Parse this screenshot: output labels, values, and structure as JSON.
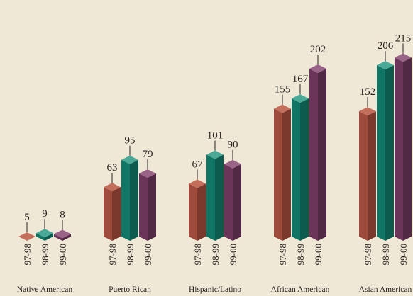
{
  "chart_data": {
    "type": "bar",
    "groups": [
      "Native American",
      "Puerto Rican",
      "Hispanic/Latino",
      "African American",
      "Asian American"
    ],
    "categories": [
      "97-98",
      "98-99",
      "99-00"
    ],
    "series": [
      {
        "values": [
          5,
          9,
          8
        ]
      },
      {
        "values": [
          63,
          95,
          79
        ]
      },
      {
        "values": [
          67,
          101,
          90
        ]
      },
      {
        "values": [
          155,
          167,
          202
        ]
      },
      {
        "values": [
          152,
          206,
          215
        ]
      }
    ],
    "ylim": [
      0,
      230
    ],
    "grid": false,
    "legend": "none"
  },
  "colors": {
    "year1": {
      "front": "#9e4a3c",
      "top": "#c46e5c"
    },
    "year2": {
      "front": "#117566",
      "top": "#4aa896"
    },
    "year3": {
      "front": "#6a3558",
      "top": "#9a6488"
    },
    "background": "#efe8d6"
  }
}
